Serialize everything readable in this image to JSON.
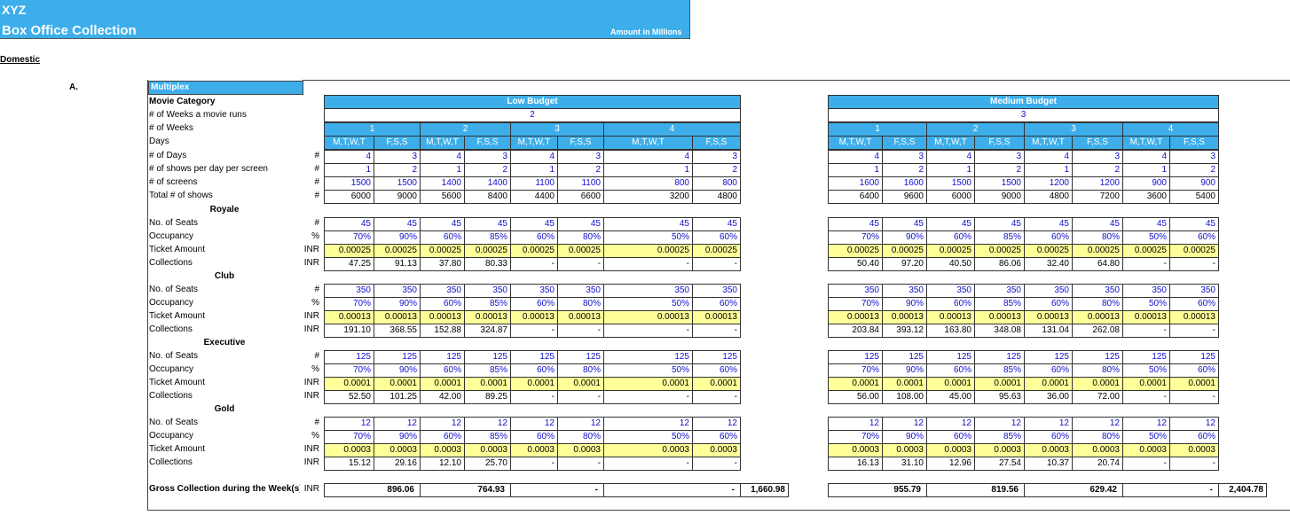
{
  "header": {
    "company": "XYZ",
    "title": "Box Office Collection",
    "note": "Amount in Millions"
  },
  "section": "Domestic",
  "item": "A.",
  "group": "Multiplex",
  "labels": {
    "movie_category": "Movie Category",
    "weeks_run": "# of Weeks a movie runs",
    "weeks": "# of Weeks",
    "days": "Days",
    "setup": [
      "# of Days",
      "# of shows per day per screen",
      "# of screens",
      "Total # of shows"
    ],
    "setup_units": [
      "#",
      "#",
      "#",
      "#"
    ],
    "gross": "Gross Collection during the Week(s)",
    "gross_unit": "INR"
  },
  "classes": [
    {
      "name": "Royale",
      "labels": [
        "No. of Seats",
        "Occupancy",
        "Ticket Amount",
        "Collections"
      ],
      "units": [
        "#",
        "%",
        "INR",
        "INR"
      ]
    },
    {
      "name": "Club",
      "labels": [
        "No. of Seats",
        "Occupancy",
        "Ticket Amount",
        "Collections"
      ],
      "units": [
        "#",
        "%",
        "INR",
        "INR"
      ]
    },
    {
      "name": "Executive",
      "labels": [
        "No. of Seats",
        "Occupancy",
        "Ticket Amount",
        "Collections"
      ],
      "units": [
        "#",
        "%",
        "INR",
        "INR"
      ]
    },
    {
      "name": "Gold",
      "labels": [
        "No. of Seats",
        "Occupancy",
        "Ticket Amount",
        "Collections"
      ],
      "units": [
        "#",
        "%",
        "INR",
        "INR"
      ]
    }
  ],
  "tables": [
    {
      "name": "Low Budget",
      "weeks_run": "2",
      "weeks": [
        "1",
        "2",
        "3",
        "4"
      ],
      "days": [
        "M,T,W,T",
        "F,S,S",
        "M,T,W,T",
        "F,S,S",
        "M,T,W,T",
        "F,S,S",
        "M,T,W,T",
        "F,S,S"
      ],
      "setup": [
        [
          "4",
          "3",
          "4",
          "3",
          "4",
          "3",
          "4",
          "3"
        ],
        [
          "1",
          "2",
          "1",
          "2",
          "1",
          "2",
          "1",
          "2"
        ],
        [
          "1500",
          "1500",
          "1400",
          "1400",
          "1100",
          "1100",
          "800",
          "800"
        ],
        [
          "6000",
          "9000",
          "5600",
          "8400",
          "4400",
          "6600",
          "3200",
          "4800"
        ]
      ],
      "classes": [
        [
          [
            "45",
            "45",
            "45",
            "45",
            "45",
            "45",
            "45",
            "45"
          ],
          [
            "70%",
            "90%",
            "60%",
            "85%",
            "60%",
            "80%",
            "50%",
            "60%"
          ],
          [
            "0.00025",
            "0.00025",
            "0.00025",
            "0.00025",
            "0.00025",
            "0.00025",
            "0.00025",
            "0.00025"
          ],
          [
            "47.25",
            "91.13",
            "37.80",
            "80.33",
            "-",
            "-",
            "-",
            "-"
          ]
        ],
        [
          [
            "350",
            "350",
            "350",
            "350",
            "350",
            "350",
            "350",
            "350"
          ],
          [
            "70%",
            "90%",
            "60%",
            "85%",
            "60%",
            "80%",
            "50%",
            "60%"
          ],
          [
            "0.00013",
            "0.00013",
            "0.00013",
            "0.00013",
            "0.00013",
            "0.00013",
            "0.00013",
            "0.00013"
          ],
          [
            "191.10",
            "368.55",
            "152.88",
            "324.87",
            "-",
            "-",
            "-",
            "-"
          ]
        ],
        [
          [
            "125",
            "125",
            "125",
            "125",
            "125",
            "125",
            "125",
            "125"
          ],
          [
            "70%",
            "90%",
            "60%",
            "85%",
            "60%",
            "80%",
            "50%",
            "60%"
          ],
          [
            "0.0001",
            "0.0001",
            "0.0001",
            "0.0001",
            "0.0001",
            "0.0001",
            "0.0001",
            "0.0001"
          ],
          [
            "52.50",
            "101.25",
            "42.00",
            "89.25",
            "-",
            "-",
            "-",
            "-"
          ]
        ],
        [
          [
            "12",
            "12",
            "12",
            "12",
            "12",
            "12",
            "12",
            "12"
          ],
          [
            "70%",
            "90%",
            "60%",
            "85%",
            "60%",
            "80%",
            "50%",
            "60%"
          ],
          [
            "0.0003",
            "0.0003",
            "0.0003",
            "0.0003",
            "0.0003",
            "0.0003",
            "0.0003",
            "0.0003"
          ],
          [
            "15.12",
            "29.16",
            "12.10",
            "25.70",
            "-",
            "-",
            "-",
            "-"
          ]
        ]
      ],
      "gross": [
        "896.06",
        "764.93",
        "-",
        "-"
      ],
      "total": "1,660.98"
    },
    {
      "name": "Medium Budget",
      "weeks_run": "3",
      "weeks": [
        "1",
        "2",
        "3",
        "4"
      ],
      "days": [
        "M,T,W,T",
        "F,S,S",
        "M,T,W,T",
        "F,S,S",
        "M,T,W,T",
        "F,S,S",
        "M,T,W,T",
        "F,S,S"
      ],
      "setup": [
        [
          "4",
          "3",
          "4",
          "3",
          "4",
          "3",
          "4",
          "3"
        ],
        [
          "1",
          "2",
          "1",
          "2",
          "1",
          "2",
          "1",
          "2"
        ],
        [
          "1600",
          "1600",
          "1500",
          "1500",
          "1200",
          "1200",
          "900",
          "900"
        ],
        [
          "6400",
          "9600",
          "6000",
          "9000",
          "4800",
          "7200",
          "3600",
          "5400"
        ]
      ],
      "classes": [
        [
          [
            "45",
            "45",
            "45",
            "45",
            "45",
            "45",
            "45",
            "45"
          ],
          [
            "70%",
            "90%",
            "60%",
            "85%",
            "60%",
            "80%",
            "50%",
            "60%"
          ],
          [
            "0.00025",
            "0.00025",
            "0.00025",
            "0.00025",
            "0.00025",
            "0.00025",
            "0.00025",
            "0.00025"
          ],
          [
            "50.40",
            "97.20",
            "40.50",
            "86.06",
            "32.40",
            "64.80",
            "-",
            "-"
          ]
        ],
        [
          [
            "350",
            "350",
            "350",
            "350",
            "350",
            "350",
            "350",
            "350"
          ],
          [
            "70%",
            "90%",
            "60%",
            "85%",
            "60%",
            "80%",
            "50%",
            "60%"
          ],
          [
            "0.00013",
            "0.00013",
            "0.00013",
            "0.00013",
            "0.00013",
            "0.00013",
            "0.00013",
            "0.00013"
          ],
          [
            "203.84",
            "393.12",
            "163.80",
            "348.08",
            "131.04",
            "262.08",
            "-",
            "-"
          ]
        ],
        [
          [
            "125",
            "125",
            "125",
            "125",
            "125",
            "125",
            "125",
            "125"
          ],
          [
            "70%",
            "90%",
            "60%",
            "85%",
            "60%",
            "80%",
            "50%",
            "60%"
          ],
          [
            "0.0001",
            "0.0001",
            "0.0001",
            "0.0001",
            "0.0001",
            "0.0001",
            "0.0001",
            "0.0001"
          ],
          [
            "56.00",
            "108.00",
            "45.00",
            "95.63",
            "36.00",
            "72.00",
            "-",
            "-"
          ]
        ],
        [
          [
            "12",
            "12",
            "12",
            "12",
            "12",
            "12",
            "12",
            "12"
          ],
          [
            "70%",
            "90%",
            "60%",
            "85%",
            "60%",
            "80%",
            "50%",
            "60%"
          ],
          [
            "0.0003",
            "0.0003",
            "0.0003",
            "0.0003",
            "0.0003",
            "0.0003",
            "0.0003",
            "0.0003"
          ],
          [
            "16.13",
            "31.10",
            "12.96",
            "27.54",
            "10.37",
            "20.74",
            "-",
            "-"
          ]
        ]
      ],
      "gross": [
        "955.79",
        "819.56",
        "629.42",
        "-"
      ],
      "total": "2,404.78"
    }
  ]
}
